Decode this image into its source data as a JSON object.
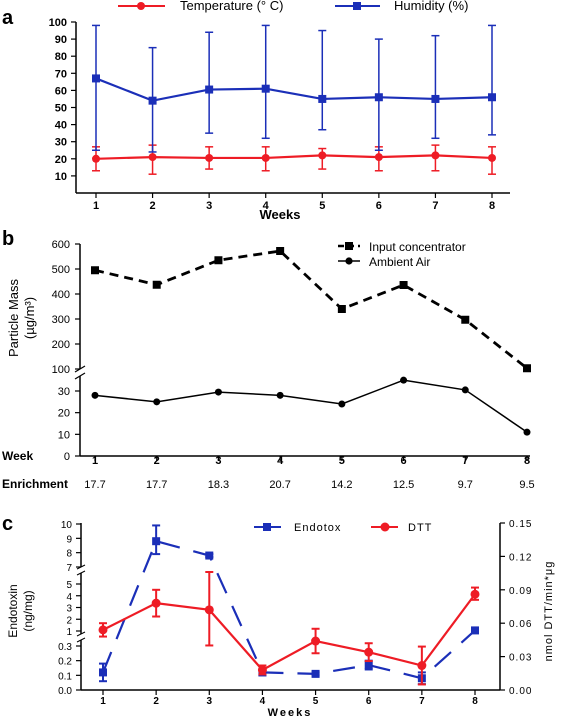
{
  "chart_data": [
    {
      "panel": "a",
      "type": "line",
      "xlabel": "Weeks",
      "ylabel": "",
      "x": [
        1,
        2,
        3,
        4,
        5,
        6,
        7,
        8
      ],
      "x_ticks": [
        "1",
        "2",
        "3",
        "4",
        "5",
        "6",
        "7",
        "8"
      ],
      "ylim": [
        0,
        100
      ],
      "y_ticks": [
        "10",
        "20",
        "30",
        "40",
        "50",
        "60",
        "70",
        "80",
        "90",
        "100"
      ],
      "legend_position": "top",
      "series": [
        {
          "name": "Temperature (° C)",
          "color": "#ee1c25",
          "values": [
            20,
            21,
            20.5,
            20.5,
            22,
            21,
            22,
            20.5
          ],
          "err_low": [
            13,
            11,
            14,
            13,
            14,
            13,
            13,
            11
          ],
          "err_high": [
            27,
            28,
            27,
            27,
            26,
            27,
            28,
            27
          ]
        },
        {
          "name": "Humidity (%)",
          "color": "#1b2fb8",
          "values": [
            67,
            54,
            60.5,
            61,
            55,
            56,
            55,
            56
          ],
          "err_low": [
            25,
            24,
            35,
            32,
            37,
            25,
            32,
            34
          ],
          "err_high": [
            98,
            85,
            94,
            98,
            95,
            90,
            92,
            98
          ]
        }
      ]
    },
    {
      "panel": "b",
      "type": "line",
      "ylabel_line1": "Particle Mass",
      "ylabel_line2": "(µg/m³)",
      "x": [
        1,
        2,
        3,
        4,
        5,
        6,
        7,
        8
      ],
      "x_ticks": [
        "1",
        "2",
        "3",
        "4",
        "5",
        "6",
        "7",
        "8"
      ],
      "y_ticks_upper": [
        "100",
        "200",
        "300",
        "400",
        "500",
        "600"
      ],
      "y_ticks_lower": [
        "0",
        "10",
        "20",
        "30"
      ],
      "axis_break": [
        35,
        100
      ],
      "row_label_week": "Week",
      "row_label_enrichment": "Enrichment",
      "enrichment": [
        "17.7",
        "17.7",
        "18.3",
        "20.7",
        "14.2",
        "12.5",
        "9.7",
        "9.5"
      ],
      "legend_position": "top-right",
      "series": [
        {
          "name": "Input concentrator",
          "marker": "square",
          "line": "dashed",
          "values": [
            495,
            437,
            535,
            572,
            340,
            436,
            297,
            103
          ]
        },
        {
          "name": "Ambient Air",
          "marker": "circle",
          "line": "solid",
          "values": [
            28,
            25,
            29.5,
            28,
            24,
            35,
            30.5,
            11
          ]
        }
      ]
    },
    {
      "panel": "c",
      "type": "line",
      "xlabel": "Weeks",
      "ylabel_left_line1": "Endotoxin",
      "ylabel_left_line2": "(ng/mg)",
      "ylabel_right": "nmol DTT/min*μg",
      "x": [
        1,
        2,
        3,
        4,
        5,
        6,
        7,
        8
      ],
      "x_ticks": [
        "1",
        "2",
        "3",
        "4",
        "5",
        "6",
        "7",
        "8"
      ],
      "y_left_ticks_lower": [
        "0.0",
        "0.1",
        "0.2",
        "0.3"
      ],
      "y_left_ticks_middle": [
        "1",
        "2",
        "3",
        "4",
        "5"
      ],
      "y_left_ticks_upper": [
        "7",
        "8",
        "9",
        "10"
      ],
      "y_right_ticks": [
        "0.00",
        "0.03",
        "0.06",
        "0.09",
        "0.12",
        "0.15"
      ],
      "legend_position": "top",
      "series": [
        {
          "name": "Endotox",
          "color": "#1b2fb8",
          "axis": "left",
          "line": "dashed",
          "values": [
            0.12,
            8.8,
            7.8,
            0.12,
            0.11,
            0.17,
            0.08,
            1.05
          ],
          "err_low": [
            0.06,
            7.9,
            7.7,
            0.1,
            0.1,
            0.14,
            0.04,
            1.05
          ],
          "err_high": [
            0.18,
            9.9,
            7.9,
            0.14,
            0.12,
            0.2,
            0.12,
            1.05
          ]
        },
        {
          "name": "DTT",
          "color": "#ee1c25",
          "axis": "right",
          "line": "solid",
          "values": [
            0.054,
            0.078,
            0.072,
            0.018,
            0.044,
            0.034,
            0.022,
            0.086
          ],
          "err_low": [
            0.048,
            0.066,
            0.04,
            0.014,
            0.033,
            0.026,
            0.005,
            0.081
          ],
          "err_high": [
            0.06,
            0.09,
            0.106,
            0.022,
            0.055,
            0.042,
            0.039,
            0.092
          ]
        }
      ]
    }
  ],
  "panel_labels": [
    "a",
    "b",
    "c"
  ]
}
